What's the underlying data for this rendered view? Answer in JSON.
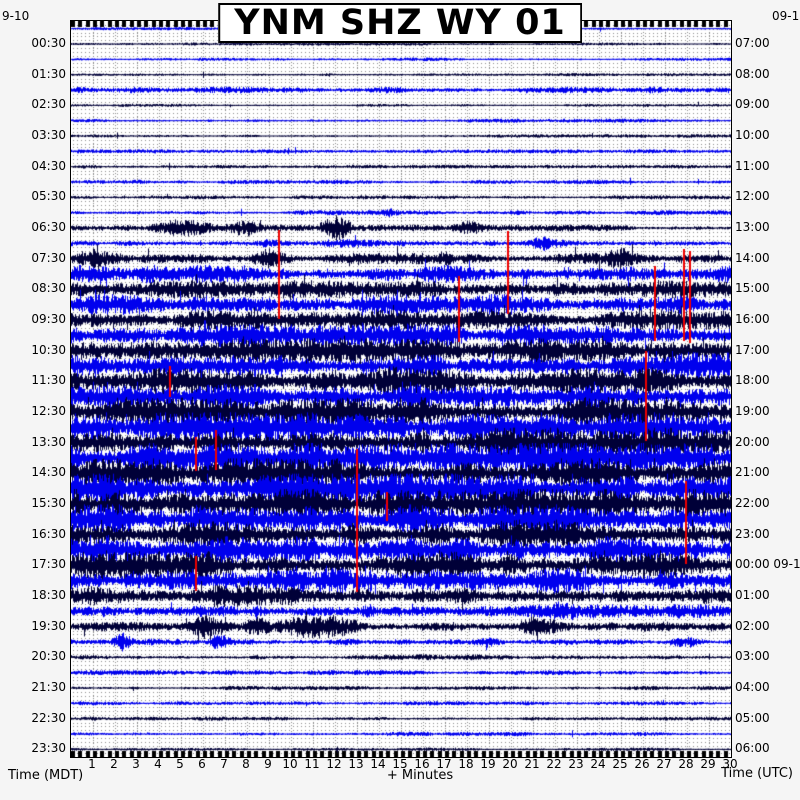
{
  "title": "YNM SHZ WY 01",
  "dates": {
    "top_left": "9-10",
    "top_right": "09-1"
  },
  "axes": {
    "left_caption": "Time (MDT)",
    "bottom_caption": "+ Minutes",
    "right_caption": "Time (UTC)",
    "minute_labels": [
      "1",
      "2",
      "3",
      "4",
      "5",
      "6",
      "7",
      "8",
      "9",
      "10",
      "11",
      "12",
      "13",
      "14",
      "15",
      "16",
      "17",
      "18",
      "19",
      "20",
      "21",
      "22",
      "23",
      "24",
      "25",
      "26",
      "27",
      "28",
      "29",
      "30"
    ],
    "left_labels": [
      "00:30",
      "01:30",
      "02:30",
      "03:30",
      "04:30",
      "05:30",
      "06:30",
      "07:30",
      "08:30",
      "09:30",
      "10:30",
      "11:30",
      "12:30",
      "13:30",
      "14:30",
      "15:30",
      "16:30",
      "17:30",
      "18:30",
      "19:30",
      "20:30",
      "21:30",
      "22:30",
      "23:30"
    ],
    "right_labels": [
      "07:00",
      "08:00",
      "09:00",
      "10:00",
      "11:00",
      "12:00",
      "13:00",
      "14:00",
      "15:00",
      "16:00",
      "17:00",
      "18:00",
      "19:00",
      "20:00",
      "21:00",
      "22:00",
      "23:00",
      "00:00 09-11",
      "01:00",
      "02:00",
      "03:00",
      "04:00",
      "05:00",
      "06:00"
    ]
  },
  "colors": {
    "navy": "#000038",
    "blue": "#0000ee",
    "marker": "#ee0000",
    "grid": "#8a8a8a",
    "plot_bg": "#ffffff",
    "page_bg": "#f5f5f5",
    "border": "#000000"
  },
  "chart_data": {
    "type": "line",
    "description": "24-hour helicorder (webicorder) record, 48 trace lines of 30 minutes each, alternating navy/blue; amplitude in relative pixels; red vertical lines are event markers",
    "title": "YNM SHZ WY 01",
    "xlabel": "+ Minutes",
    "ylabel_left": "Time (MDT)",
    "ylabel_right": "Time (UTC)",
    "x_range": [
      0,
      30
    ],
    "minutes_per_line": 30,
    "lines_total": 48,
    "rows": [
      {
        "t": "00:00",
        "c": "blue",
        "a": 1.2,
        "b": []
      },
      {
        "t": "00:30",
        "c": "navy",
        "a": 1.2,
        "b": []
      },
      {
        "t": "01:00",
        "c": "blue",
        "a": 1.3,
        "b": []
      },
      {
        "t": "01:30",
        "c": "navy",
        "a": 1.2,
        "b": []
      },
      {
        "t": "02:00",
        "c": "blue",
        "a": 2.4,
        "b": []
      },
      {
        "t": "02:30",
        "c": "navy",
        "a": 1.3,
        "b": []
      },
      {
        "t": "03:00",
        "c": "blue",
        "a": 1.5,
        "b": []
      },
      {
        "t": "03:30",
        "c": "navy",
        "a": 1.3,
        "b": []
      },
      {
        "t": "04:00",
        "c": "blue",
        "a": 1.5,
        "b": []
      },
      {
        "t": "04:30",
        "c": "navy",
        "a": 1.4,
        "b": []
      },
      {
        "t": "05:00",
        "c": "blue",
        "a": 1.6,
        "b": []
      },
      {
        "t": "05:30",
        "c": "navy",
        "a": 1.5,
        "b": []
      },
      {
        "t": "06:00",
        "c": "blue",
        "a": 1.8,
        "b": [
          [
            14,
            15,
            4
          ]
        ]
      },
      {
        "t": "06:30",
        "c": "navy",
        "a": 2.4,
        "b": [
          [
            3.5,
            6.5,
            8
          ],
          [
            7,
            8.6,
            9
          ],
          [
            11.3,
            12.7,
            11
          ],
          [
            17,
            19,
            6
          ]
        ]
      },
      {
        "t": "07:00",
        "c": "blue",
        "a": 3.0,
        "b": [
          [
            8,
            10,
            7
          ],
          [
            14,
            16,
            6
          ],
          [
            20.3,
            22.7,
            9
          ],
          [
            26,
            27,
            5
          ]
        ]
      },
      {
        "t": "07:30",
        "c": "navy",
        "a": 4.5,
        "b": [
          [
            0,
            2,
            8
          ],
          [
            7.8,
            10.2,
            10
          ],
          [
            11.8,
            14.2,
            11
          ],
          [
            16.5,
            17.5,
            7
          ],
          [
            23.8,
            26.2,
            9
          ],
          [
            27.8,
            30,
            8
          ]
        ]
      },
      {
        "t": "08:00",
        "c": "blue",
        "a": 6.5,
        "b": []
      },
      {
        "t": "08:30",
        "c": "navy",
        "a": 6.5,
        "b": []
      },
      {
        "t": "09:00",
        "c": "blue",
        "a": 7.5,
        "b": []
      },
      {
        "t": "09:30",
        "c": "navy",
        "a": 7.5,
        "b": []
      },
      {
        "t": "10:00",
        "c": "blue",
        "a": 8.5,
        "b": []
      },
      {
        "t": "10:30",
        "c": "navy",
        "a": 9.0,
        "b": []
      },
      {
        "t": "11:00",
        "c": "blue",
        "a": 10.0,
        "b": []
      },
      {
        "t": "11:30",
        "c": "navy",
        "a": 10.0,
        "b": []
      },
      {
        "t": "12:00",
        "c": "blue",
        "a": 10.5,
        "b": []
      },
      {
        "t": "12:30",
        "c": "navy",
        "a": 10.5,
        "b": []
      },
      {
        "t": "13:00",
        "c": "blue",
        "a": 11.0,
        "b": []
      },
      {
        "t": "13:30",
        "c": "navy",
        "a": 11.0,
        "b": []
      },
      {
        "t": "14:00",
        "c": "blue",
        "a": 12.0,
        "b": []
      },
      {
        "t": "14:30",
        "c": "navy",
        "a": 12.0,
        "b": []
      },
      {
        "t": "15:00",
        "c": "blue",
        "a": 12.0,
        "b": []
      },
      {
        "t": "15:30",
        "c": "navy",
        "a": 11.5,
        "b": []
      },
      {
        "t": "16:00",
        "c": "blue",
        "a": 11.0,
        "b": []
      },
      {
        "t": "16:30",
        "c": "navy",
        "a": 10.5,
        "b": []
      },
      {
        "t": "17:00",
        "c": "blue",
        "a": 10.0,
        "b": []
      },
      {
        "t": "17:30",
        "c": "navy",
        "a": 10.0,
        "b": []
      },
      {
        "t": "18:00",
        "c": "blue",
        "a": 9.0,
        "b": []
      },
      {
        "t": "18:30",
        "c": "navy",
        "a": 8.0,
        "b": []
      },
      {
        "t": "19:00",
        "c": "blue",
        "a": 5.0,
        "b": [
          [
            0.8,
            2.2,
            6
          ],
          [
            7.6,
            9.4,
            9
          ],
          [
            12.6,
            14.4,
            7
          ],
          [
            20.6,
            23.4,
            10
          ],
          [
            26.6,
            28.4,
            6
          ]
        ]
      },
      {
        "t": "19:30",
        "c": "navy",
        "a": 3.5,
        "b": [
          [
            5.3,
            7.2,
            10
          ],
          [
            7.8,
            9.2,
            8
          ],
          [
            9.4,
            13.2,
            11
          ],
          [
            19.6,
            22.4,
            9
          ],
          [
            28.2,
            30,
            7
          ]
        ]
      },
      {
        "t": "20:00",
        "c": "blue",
        "a": 2.6,
        "b": [
          [
            1.8,
            2.8,
            7
          ],
          [
            6.3,
            7.3,
            9
          ],
          [
            18.3,
            19.7,
            8
          ],
          [
            21.8,
            23.2,
            6
          ],
          [
            27.2,
            28.8,
            10
          ]
        ]
      },
      {
        "t": "20:30",
        "c": "navy",
        "a": 2.2,
        "b": []
      },
      {
        "t": "21:00",
        "c": "blue",
        "a": 1.9,
        "b": []
      },
      {
        "t": "21:30",
        "c": "navy",
        "a": 1.6,
        "b": []
      },
      {
        "t": "22:00",
        "c": "blue",
        "a": 1.6,
        "b": []
      },
      {
        "t": "22:30",
        "c": "navy",
        "a": 1.5,
        "b": []
      },
      {
        "t": "23:00",
        "c": "blue",
        "a": 1.7,
        "b": []
      },
      {
        "t": "23:30",
        "c": "navy",
        "a": 1.3,
        "b": []
      }
    ],
    "event_markers": [
      [
        19.8,
        13.2,
        18.6
      ],
      [
        9.4,
        13.1,
        18.9
      ],
      [
        17.6,
        16.1,
        20.4
      ],
      [
        26.5,
        15.5,
        20.4
      ],
      [
        27.8,
        14.4,
        20.4
      ],
      [
        28.1,
        14.5,
        20.5
      ],
      [
        4.45,
        22.0,
        24.0
      ],
      [
        26.1,
        21.0,
        26.9
      ],
      [
        5.64,
        26.6,
        28.8
      ],
      [
        6.55,
        26.2,
        28.8
      ],
      [
        12.95,
        27.4,
        36.7
      ],
      [
        14.3,
        30.2,
        32.1
      ],
      [
        5.64,
        34.4,
        36.7
      ],
      [
        27.9,
        29.5,
        34.9
      ]
    ]
  }
}
